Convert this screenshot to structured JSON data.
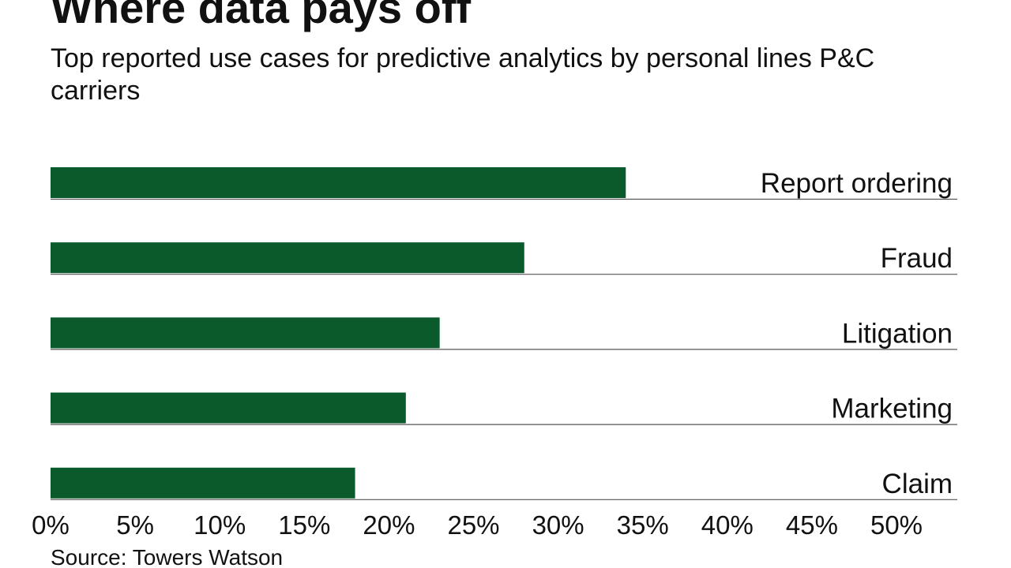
{
  "chart_data": {
    "type": "bar",
    "orientation": "horizontal",
    "title": "Where data pays off",
    "subtitle": "Top reported use cases for predictive analytics by personal lines P&C carriers",
    "source": "Source: Towers Watson",
    "categories": [
      "Report ordering",
      "Fraud",
      "Litigation",
      "Marketing",
      "Claim"
    ],
    "values": [
      34,
      28,
      23,
      21,
      18
    ],
    "xlim": [
      0,
      50
    ],
    "xticks": [
      0,
      5,
      10,
      15,
      20,
      25,
      30,
      35,
      40,
      45,
      50
    ],
    "xtick_labels": [
      "0%",
      "5%",
      "10%",
      "15%",
      "20%",
      "25%",
      "30%",
      "35%",
      "40%",
      "45%",
      "50%"
    ],
    "value_unit": "%",
    "grid": false,
    "legend": "none",
    "bar_color": "#0a5a2b",
    "baseline_color": "#555555",
    "xlabel": "",
    "ylabel": ""
  }
}
